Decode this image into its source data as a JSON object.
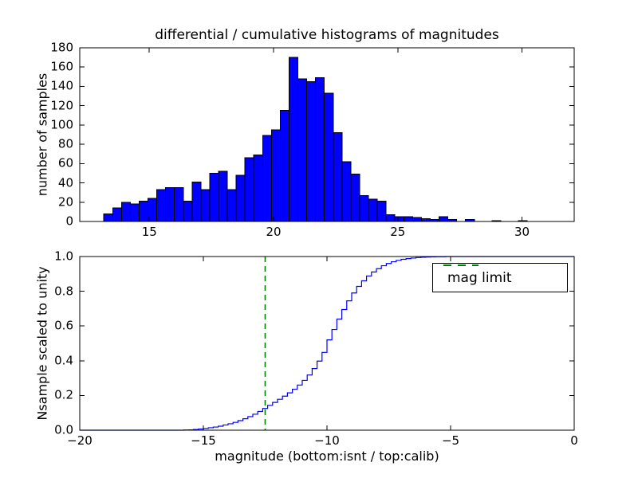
{
  "figure": {
    "title": "differential / cumulative histograms of magnitudes",
    "background": "#ffffff"
  },
  "colors": {
    "hist_fill": "#0000ff",
    "hist_edge": "#000000",
    "cdf_line": "#0000ff",
    "mag_limit_line": "#008000",
    "frame": "#000000",
    "text": "#000000"
  },
  "chart_data": [
    {
      "type": "bar",
      "role": "differential-histogram",
      "title": "differential / cumulative histograms of magnitudes",
      "ylabel": "number of samples",
      "xlim": [
        12.2,
        32.1
      ],
      "ylim": [
        0,
        180
      ],
      "grid": false,
      "xticks": [
        15,
        20,
        25,
        30
      ],
      "xtick_labels": [
        "15",
        "20",
        "25",
        "30"
      ],
      "yticks": [
        0,
        20,
        40,
        60,
        80,
        100,
        120,
        140,
        160,
        180
      ],
      "ytick_labels": [
        "0",
        "20",
        "40",
        "60",
        "80",
        "100",
        "120",
        "140",
        "160",
        "180"
      ],
      "bin_start": 13.17,
      "bin_width": 0.355,
      "counts": [
        8,
        14,
        20,
        18,
        21,
        24,
        33,
        35,
        35,
        21,
        41,
        33,
        50,
        52,
        33,
        48,
        66,
        69,
        89,
        95,
        115,
        170,
        148,
        145,
        149,
        133,
        92,
        62,
        49,
        27,
        23,
        21,
        7,
        5,
        5,
        4,
        3,
        2,
        5,
        2,
        0,
        2,
        0,
        0,
        1,
        0,
        0,
        1
      ]
    },
    {
      "type": "line",
      "role": "cumulative-histogram",
      "xlabel": "magnitude (bottom:isnt / top:calib)",
      "ylabel": "Nsample scaled to unity",
      "xlim": [
        -20,
        0
      ],
      "ylim": [
        0.0,
        1.0
      ],
      "grid": false,
      "xticks": [
        -20,
        -15,
        -10,
        -5,
        0
      ],
      "xtick_labels": [
        "−20",
        "−15",
        "−10",
        "−5",
        "0"
      ],
      "yticks": [
        0.0,
        0.2,
        0.4,
        0.6,
        0.8,
        1.0
      ],
      "ytick_labels": [
        "0.0",
        "0.2",
        "0.4",
        "0.6",
        "0.8",
        "1.0"
      ],
      "step_x_start": -16.0,
      "step_dx": 0.2,
      "cdf": [
        0.0,
        0.001,
        0.002,
        0.004,
        0.007,
        0.01,
        0.014,
        0.018,
        0.023,
        0.03,
        0.037,
        0.045,
        0.055,
        0.066,
        0.078,
        0.092,
        0.108,
        0.125,
        0.143,
        0.16,
        0.178,
        0.196,
        0.215,
        0.236,
        0.26,
        0.287,
        0.318,
        0.355,
        0.398,
        0.448,
        0.52,
        0.58,
        0.64,
        0.695,
        0.745,
        0.79,
        0.828,
        0.86,
        0.888,
        0.911,
        0.93,
        0.947,
        0.96,
        0.97,
        0.978,
        0.984,
        0.988,
        0.991,
        0.994,
        0.996,
        0.997,
        0.998,
        0.999,
        0.999,
        1.0,
        1.0
      ],
      "mag_limit_x": -12.5,
      "legend": {
        "label": "mag limit",
        "position": "upper right"
      }
    }
  ]
}
